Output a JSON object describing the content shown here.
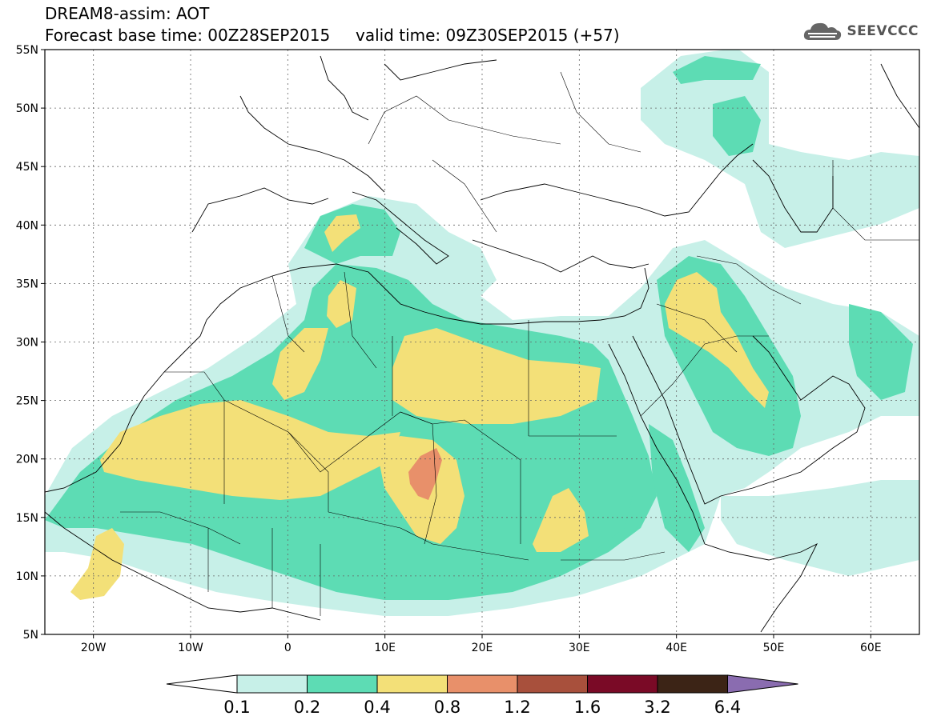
{
  "header": {
    "line1": "DREAM8-assim: AOT",
    "line2": "Forecast base time: 00Z28SEP2015     valid time: 09Z30SEP2015 (+57)"
  },
  "logo": {
    "text": "SEEVCCC",
    "icon": "cloud-icon"
  },
  "map": {
    "lon_range": [
      -25,
      65
    ],
    "lat_range": [
      5,
      55
    ],
    "lon_ticks": [
      {
        "lon": -20,
        "label": "20W"
      },
      {
        "lon": -10,
        "label": "10W"
      },
      {
        "lon": 0,
        "label": "0"
      },
      {
        "lon": 10,
        "label": "10E"
      },
      {
        "lon": 20,
        "label": "20E"
      },
      {
        "lon": 30,
        "label": "30E"
      },
      {
        "lon": 40,
        "label": "40E"
      },
      {
        "lon": 50,
        "label": "50E"
      },
      {
        "lon": 60,
        "label": "60E"
      }
    ],
    "lat_ticks": [
      {
        "lat": 55,
        "label": "55N"
      },
      {
        "lat": 50,
        "label": "50N"
      },
      {
        "lat": 45,
        "label": "45N"
      },
      {
        "lat": 40,
        "label": "40N"
      },
      {
        "lat": 35,
        "label": "35N"
      },
      {
        "lat": 30,
        "label": "30N"
      },
      {
        "lat": 25,
        "label": "25N"
      },
      {
        "lat": 20,
        "label": "20N"
      },
      {
        "lat": 15,
        "label": "15N"
      },
      {
        "lat": 10,
        "label": "10N"
      },
      {
        "lat": 5,
        "label": "5N"
      }
    ],
    "grid": true
  },
  "legend": {
    "colors": [
      "#c7f0e8",
      "#5ddcb4",
      "#f3e078",
      "#e8906a",
      "#a8503c",
      "#7a0a26",
      "#3c2416",
      "#8a6cb0"
    ],
    "labels": [
      "0.1",
      "0.2",
      "0.4",
      "0.8",
      "1.2",
      "1.6",
      "3.2",
      "6.4"
    ]
  }
}
